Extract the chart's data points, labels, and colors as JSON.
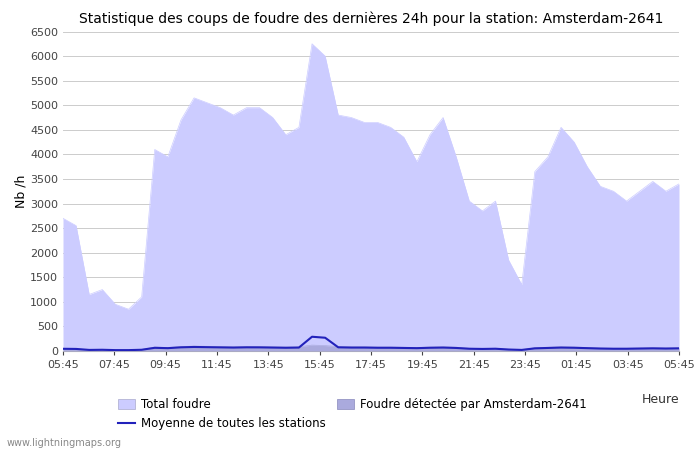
{
  "title": "Statistique des coups de foudre des dernières 24h pour la station: Amsterdam-2641",
  "ylabel": "Nb /h",
  "xlabel_legend": "Heure",
  "watermark": "www.lightningmaps.org",
  "ylim": [
    0,
    6500
  ],
  "yticks": [
    0,
    500,
    1000,
    1500,
    2000,
    2500,
    3000,
    3500,
    4000,
    4500,
    5000,
    5500,
    6000,
    6500
  ],
  "xtick_labels": [
    "05:45",
    "07:45",
    "09:45",
    "11:45",
    "13:45",
    "15:45",
    "17:45",
    "19:45",
    "21:45",
    "23:45",
    "01:45",
    "03:45",
    "05:45"
  ],
  "total_foudre_color": "#ccccff",
  "amsterdam_color": "#aaaadd",
  "mean_line_color": "#2222bb",
  "background_color": "#ffffff",
  "grid_color": "#cccccc",
  "title_fontsize": 10,
  "legend_fontsize": 8.5,
  "total_foudre": [
    2700,
    2550,
    1150,
    1250,
    950,
    850,
    1100,
    4100,
    3950,
    4700,
    5150,
    5050,
    4950,
    4800,
    4950,
    4950,
    4750,
    4400,
    4550,
    6250,
    6000,
    4800,
    4750,
    4650,
    4650,
    4550,
    4350,
    3850,
    4400,
    4750,
    3950,
    3050,
    2850,
    3050,
    1850,
    1350,
    3650,
    3950,
    4550,
    4250,
    3750,
    3350,
    3250,
    3050,
    3250,
    3450,
    3250,
    3400
  ],
  "amsterdam_detected": [
    50,
    45,
    25,
    30,
    20,
    20,
    30,
    80,
    70,
    90,
    100,
    95,
    90,
    85,
    90,
    90,
    85,
    80,
    85,
    120,
    110,
    90,
    85,
    85,
    80,
    80,
    75,
    70,
    80,
    85,
    75,
    55,
    50,
    55,
    35,
    25,
    65,
    75,
    85,
    80,
    70,
    60,
    55,
    55,
    60,
    65,
    60,
    65
  ],
  "mean_all_stations": [
    45,
    42,
    22,
    25,
    18,
    18,
    25,
    65,
    58,
    75,
    82,
    78,
    74,
    70,
    75,
    74,
    70,
    66,
    70,
    290,
    270,
    75,
    70,
    70,
    66,
    66,
    62,
    58,
    66,
    70,
    62,
    46,
    42,
    46,
    30,
    22,
    54,
    62,
    70,
    66,
    58,
    50,
    46,
    46,
    50,
    54,
    50,
    54
  ]
}
